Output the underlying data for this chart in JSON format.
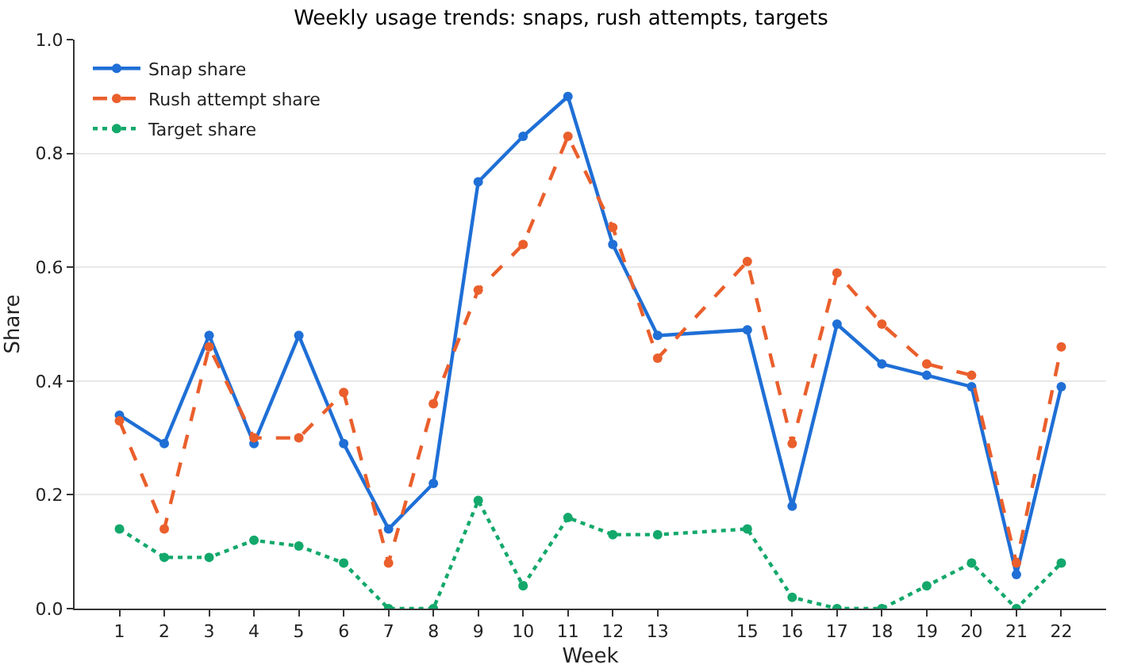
{
  "chart_data": {
    "type": "line",
    "title": "Weekly usage trends: snaps, rush attempts, targets",
    "xlabel": "Week",
    "ylabel": "Share",
    "x": [
      1,
      2,
      3,
      4,
      5,
      6,
      7,
      8,
      9,
      10,
      11,
      12,
      13,
      15,
      16,
      17,
      18,
      19,
      20,
      21,
      22
    ],
    "xlim": [
      0,
      23
    ],
    "xticks": [
      1,
      2,
      3,
      4,
      5,
      6,
      7,
      8,
      9,
      10,
      11,
      12,
      13,
      15,
      16,
      17,
      18,
      19,
      20,
      21,
      22
    ],
    "ylim": [
      0,
      1
    ],
    "yticks": [
      {
        "value": 0,
        "label": "0.0"
      },
      {
        "value": 0.2,
        "label": "0.2"
      },
      {
        "value": 0.4,
        "label": "0.4"
      },
      {
        "value": 0.6,
        "label": "0.6"
      },
      {
        "value": 0.8,
        "label": "0.8"
      },
      {
        "value": 1,
        "label": "1.0"
      }
    ],
    "grid": "y",
    "legend": "top left",
    "marker": "circle",
    "series": [
      {
        "name": "Snap share",
        "color": "#1f6fd6",
        "line_style": "solid",
        "values": [
          0.34,
          0.29,
          0.48,
          0.29,
          0.48,
          0.29,
          0.14,
          0.22,
          0.75,
          0.83,
          0.9,
          0.64,
          0.48,
          0.49,
          0.18,
          0.5,
          0.43,
          0.41,
          0.39,
          0.06,
          0.39
        ]
      },
      {
        "name": "Rush attempt share",
        "color": "#ea5f2c",
        "line_style": "dashed",
        "values": [
          0.33,
          0.14,
          0.46,
          0.3,
          0.3,
          0.38,
          0.08,
          0.36,
          0.56,
          0.64,
          0.83,
          0.67,
          0.44,
          0.61,
          0.29,
          0.59,
          0.5,
          0.43,
          0.41,
          0.08,
          0.46
        ]
      },
      {
        "name": "Target share",
        "color": "#13a86b",
        "line_style": "dotted",
        "values": [
          0.14,
          0.09,
          0.09,
          0.12,
          0.11,
          0.08,
          0.0,
          0.0,
          0.19,
          0.04,
          0.16,
          0.13,
          0.13,
          0.14,
          0.02,
          0.0,
          0.0,
          0.04,
          0.08,
          0.0,
          0.08
        ]
      }
    ]
  }
}
